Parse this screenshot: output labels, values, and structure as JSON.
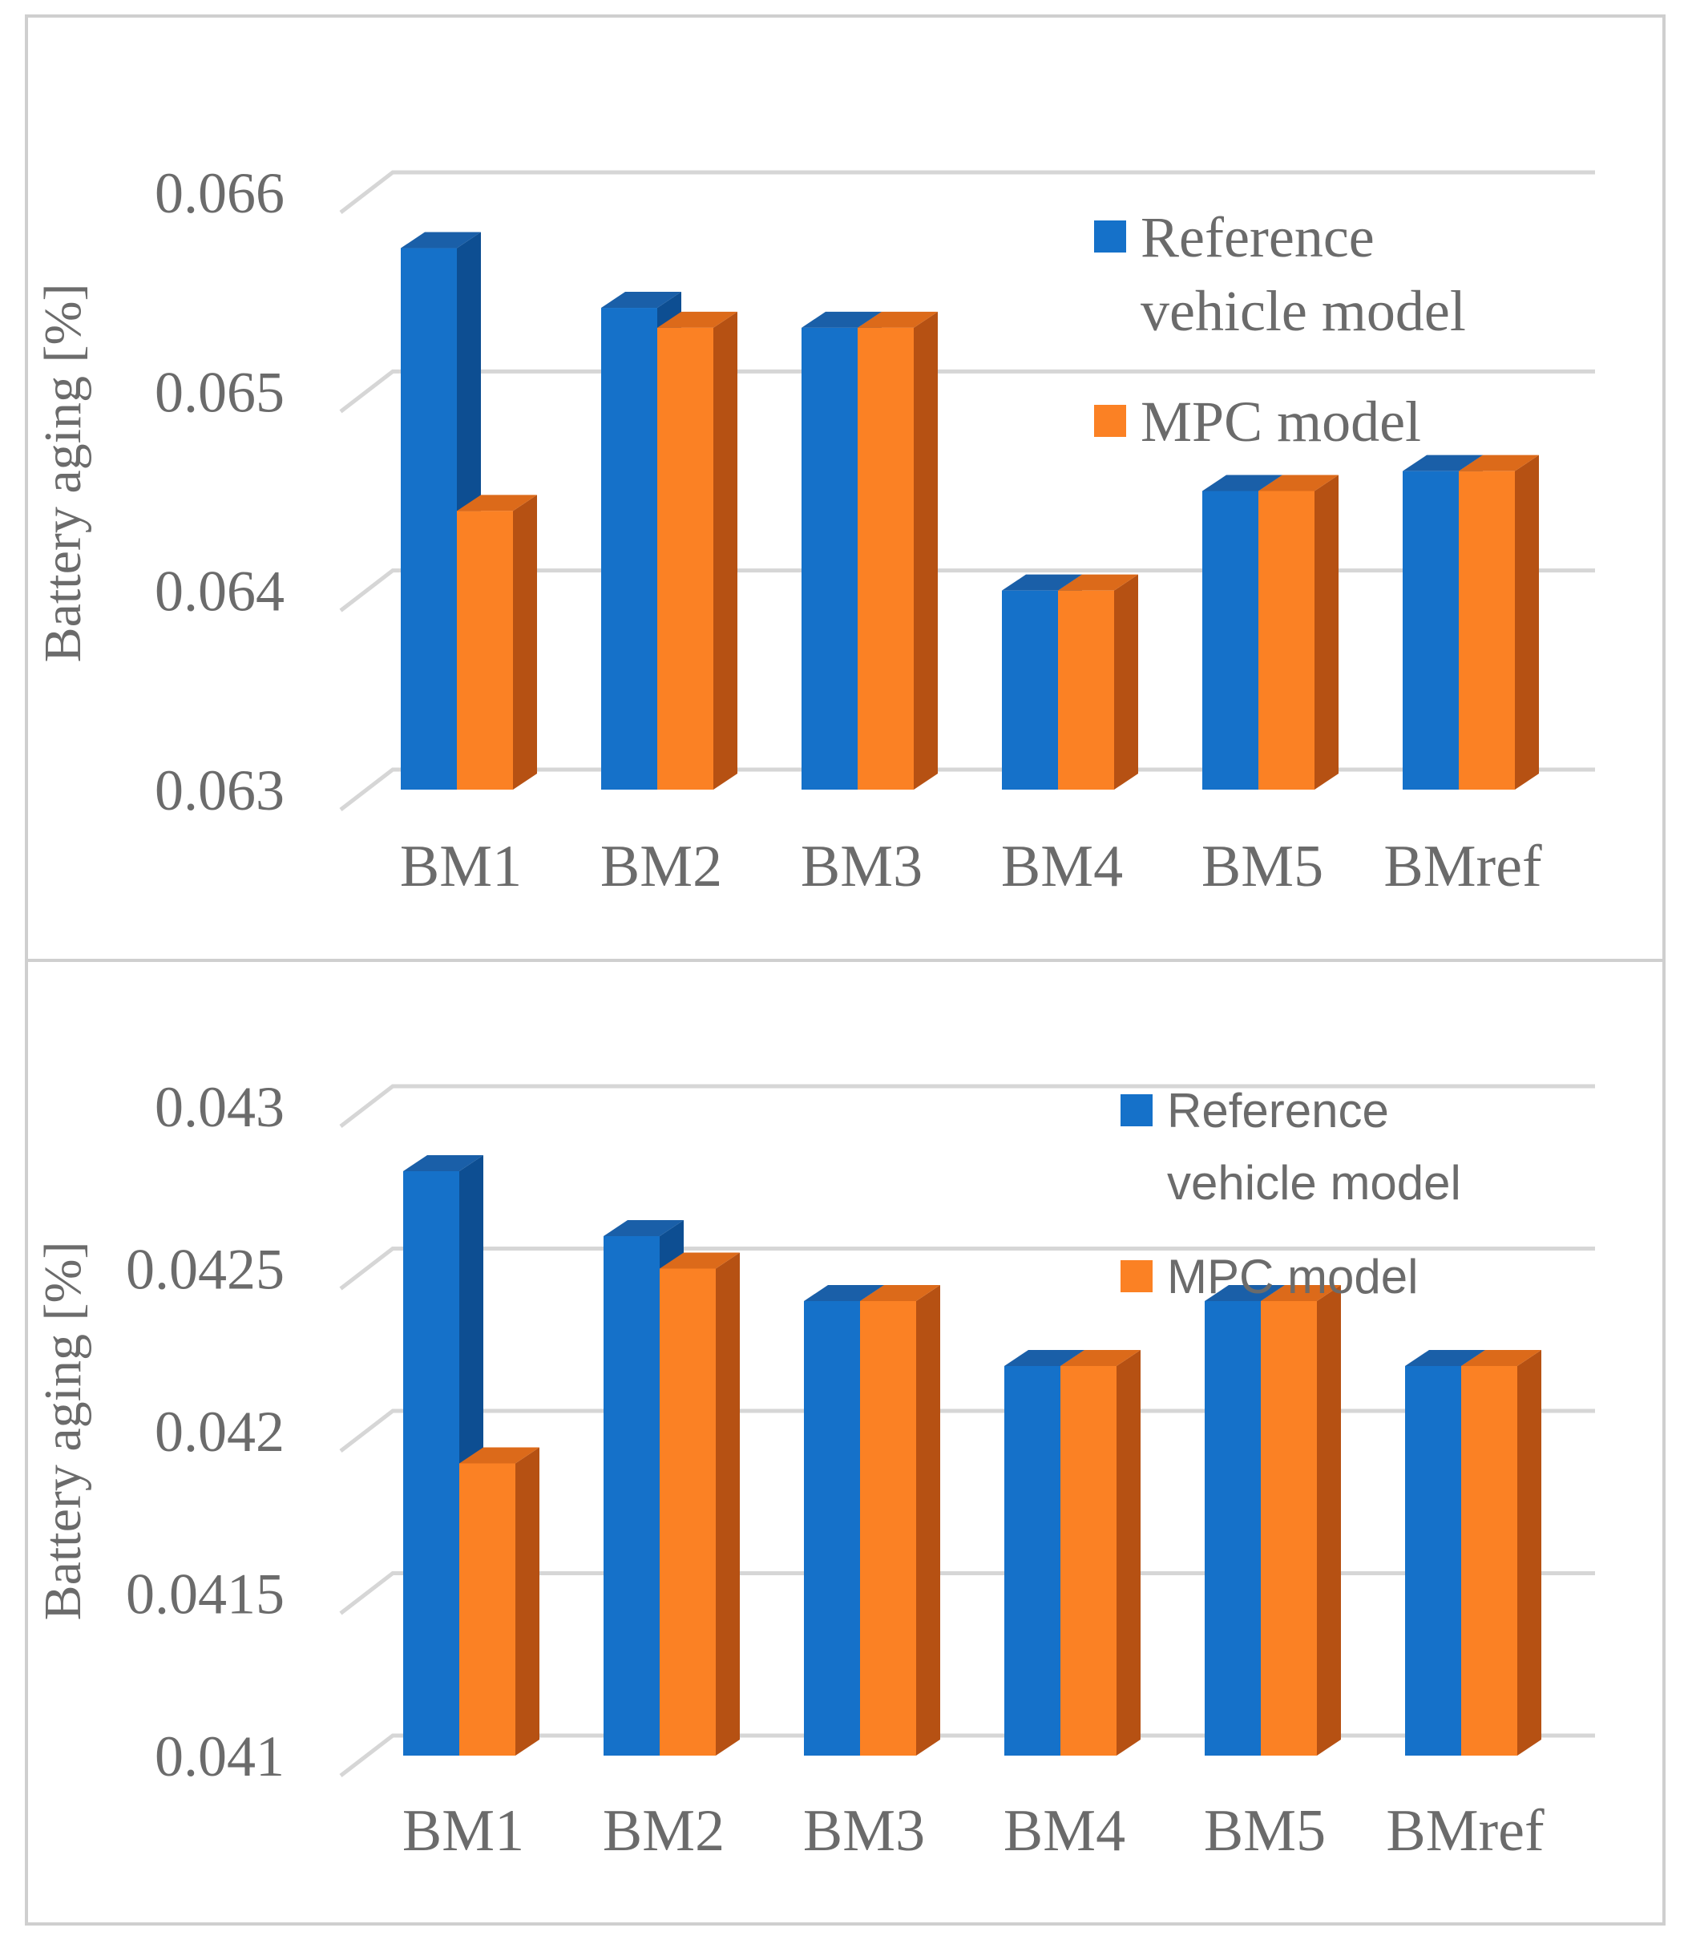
{
  "chart_data": [
    {
      "type": "bar",
      "categories": [
        "BM1",
        "BM2",
        "BM3",
        "BM4",
        "BM5",
        "BMref"
      ],
      "series": [
        {
          "name": "Reference vehicle model",
          "values": [
            0.06572,
            0.06542,
            0.06532,
            0.064,
            0.0645,
            0.0646
          ]
        },
        {
          "name": "MPC model",
          "values": [
            0.0644,
            0.06532,
            0.06532,
            0.064,
            0.0645,
            0.0646
          ]
        }
      ],
      "legend_lines": [
        [
          "Reference",
          "vehicle model"
        ],
        [
          "MPC model"
        ]
      ],
      "ylabel": "Battery aging [%]",
      "ylim": [
        0.063,
        0.066
      ],
      "yticks": [
        0.063,
        0.064,
        0.065,
        0.066
      ],
      "ytick_labels": [
        "0.063",
        "0.064",
        "0.065",
        "0.066"
      ],
      "grid": true,
      "legend_position": "top-right",
      "style": "3d-column"
    },
    {
      "type": "bar",
      "categories": [
        "BM1",
        "BM2",
        "BM3",
        "BM4",
        "BM5",
        "BMref"
      ],
      "series": [
        {
          "name": "Reference vehicle model",
          "values": [
            0.0428,
            0.0426,
            0.0424,
            0.0422,
            0.0424,
            0.0422
          ]
        },
        {
          "name": "MPC model",
          "values": [
            0.0419,
            0.0425,
            0.0424,
            0.0422,
            0.0424,
            0.0422
          ]
        }
      ],
      "legend_lines": [
        [
          "Reference",
          "vehicle model"
        ],
        [
          "MPC model"
        ]
      ],
      "ylabel": "Battery aging [%]",
      "ylim": [
        0.041,
        0.043
      ],
      "yticks": [
        0.041,
        0.0415,
        0.042,
        0.0425,
        0.043
      ],
      "ytick_labels": [
        "0.041",
        "0.0415",
        "0.042",
        "0.0425",
        "0.043"
      ],
      "grid": true,
      "legend_position": "top-right",
      "style": "3d-column"
    }
  ],
  "colors": {
    "series_front": [
      "#1571c9",
      "#fb8124"
    ],
    "series_side": [
      "#0d4e92",
      "#b65113"
    ],
    "series_top": [
      "#1a5fa8",
      "#dc6a1a"
    ],
    "grid": "#d6d6d6",
    "text": "#6b6b6b",
    "frame": "#cfcfcf"
  }
}
